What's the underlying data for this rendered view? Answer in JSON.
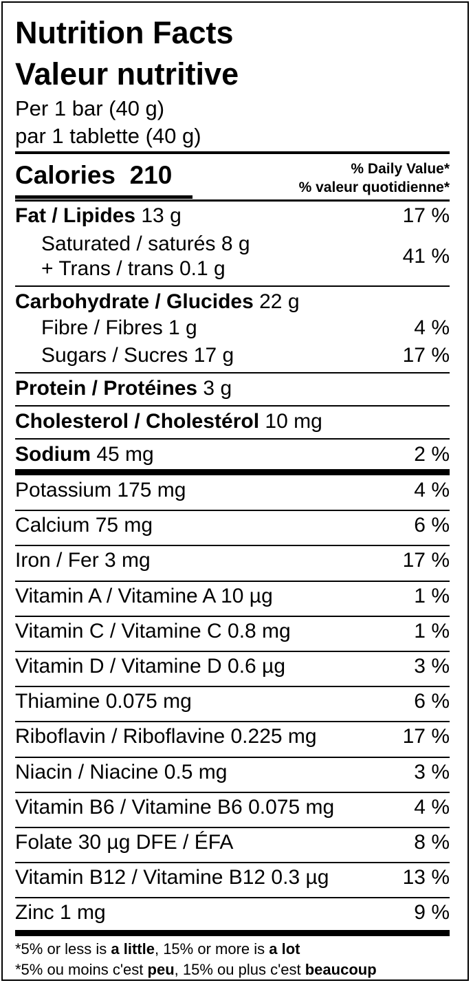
{
  "title_en": "Nutrition Facts",
  "title_fr": "Valeur nutritive",
  "serving_en": "Per 1 bar (40 g)",
  "serving_fr": "par 1 tablette (40 g)",
  "calories_label": "Calories",
  "calories_value": "210",
  "dv_header_en": "% Daily Value*",
  "dv_header_fr": "% valeur quotidienne*",
  "fat": {
    "label": "Fat / Lipides",
    "amount": "13 g",
    "dv": "17 %"
  },
  "saturated": {
    "label": "Saturated / saturés",
    "amount": "8 g"
  },
  "trans": {
    "label": "+ Trans / trans",
    "amount": "0.1 g"
  },
  "sat_trans_dv": "41 %",
  "carbohydrate": {
    "label": "Carbohydrate / Glucides",
    "amount": "22 g"
  },
  "fibre": {
    "label": "Fibre / Fibres 1 g",
    "dv": "4 %"
  },
  "sugars": {
    "label": "Sugars / Sucres 17 g",
    "dv": "17 %"
  },
  "protein": {
    "label": "Protein / Protéines",
    "amount": "3 g"
  },
  "cholesterol": {
    "label": "Cholesterol / Cholestérol",
    "amount": "10 mg"
  },
  "sodium": {
    "label": "Sodium",
    "amount": "45 mg",
    "dv": "2 %"
  },
  "micros": [
    {
      "label": "Potassium 175 mg",
      "dv": "4 %"
    },
    {
      "label": "Calcium 75 mg",
      "dv": "6 %"
    },
    {
      "label": "Iron / Fer 3 mg",
      "dv": "17 %"
    },
    {
      "label": "Vitamin A / Vitamine A 10 µg",
      "dv": "1 %"
    },
    {
      "label": "Vitamin C / Vitamine C 0.8 mg",
      "dv": "1 %"
    },
    {
      "label": "Vitamin D / Vitamine D 0.6 µg",
      "dv": "3 %"
    },
    {
      "label": "Thiamine 0.075 mg",
      "dv": "6 %"
    },
    {
      "label": "Riboflavin / Riboflavine 0.225 mg",
      "dv": "17 %"
    },
    {
      "label": "Niacin / Niacine 0.5 mg",
      "dv": "3 %"
    },
    {
      "label": "Vitamin B6 / Vitamine B6 0.075 mg",
      "dv": "4 %"
    },
    {
      "label": "Folate 30 µg DFE / ÉFA",
      "dv": "8 %"
    },
    {
      "label": "Vitamin B12 / Vitamine B12 0.3 µg",
      "dv": "13 %"
    },
    {
      "label": "Zinc 1 mg",
      "dv": "9 %"
    }
  ],
  "footnote_en": {
    "a": "*5% or less is ",
    "b": "a little",
    "c": ", 15% or more is ",
    "d": "a lot"
  },
  "footnote_fr": {
    "a": "*5% ou moins c'est ",
    "b": "peu",
    "c": ", 15% ou plus c'est ",
    "d": "beaucoup"
  }
}
